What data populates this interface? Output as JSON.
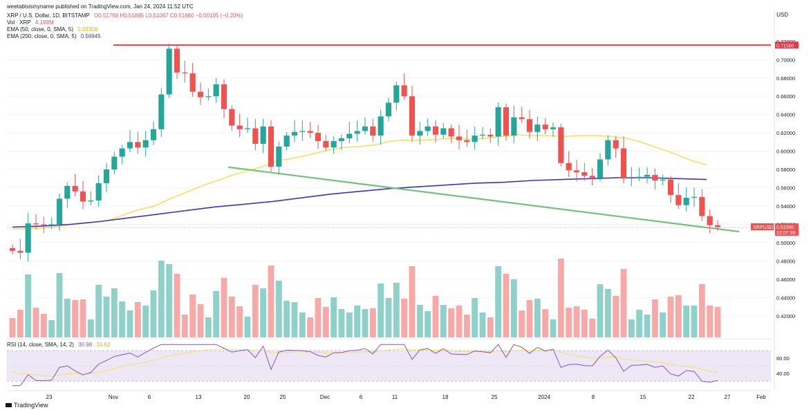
{
  "header": {
    "publisher": "weetabisismyname published on TradingView.com, Jan 24, 2024 11:52 UTC",
    "symbol": "XRP / U.S. Dollar, 1D, BITSTAMP",
    "ohlc": "O0.51768 H0.51895 L0.51067 C0.51660 −0.00105 (−0.20%)",
    "vol_label": "Vol · XRP",
    "vol_value": "4.199M",
    "ema50_label": "EMA (50, close, 0, SMA, 5)",
    "ema50_value": "0.59308",
    "ema200_label": "EMA (200, close, 0, SMA, 5)",
    "ema200_value": "0.56945",
    "rsi_label": "RSI (14, close, SMA, 14, 2)",
    "rsi_value": "30.98",
    "rsi_value2": "33.62"
  },
  "axis": {
    "currency": "USD",
    "price_ticks": [
      "0.72000",
      "0.70000",
      "0.68000",
      "0.66000",
      "0.64000",
      "0.62000",
      "0.60000",
      "0.58000",
      "0.56000",
      "0.54000",
      "0.52000",
      "0.50000",
      "0.48000",
      "0.46000",
      "0.44000",
      "0.42000"
    ],
    "rsi_ticks": [
      "60.00",
      "40.00"
    ],
    "x_ticks": [
      "23",
      "Nov",
      "6",
      "13",
      "20",
      "25",
      "Dec",
      "6",
      "11",
      "18",
      "25",
      "2024",
      "8",
      "15",
      "22",
      "27",
      "Feb"
    ],
    "resistance_tag": "0.71590",
    "symbol_tag": "XRPUSD",
    "last_price_tag": "0.51660",
    "countdown_tag": "12:07:39"
  },
  "brand": {
    "text": "TradingView"
  },
  "colors": {
    "up": "#26a69a",
    "down": "#ef5350",
    "vol_up": "#8fd0c8",
    "vol_down": "#f7a9a7",
    "ema50": "#f6e05e",
    "ema200": "#3a33c6",
    "resistance": "#e53946",
    "support": "#6ec27a",
    "rsi_line": "#7e57c2",
    "rsi_ma": "#f6e05e",
    "rsi_band": "#ede7f6"
  },
  "chart_data": {
    "type": "candlestick",
    "timeframe": "1D",
    "x_range": [
      "2023-10-17",
      "2024-01-23"
    ],
    "price_range": [
      0.41,
      0.735
    ],
    "candles_close": [
      0.491,
      0.489,
      0.521,
      0.52,
      0.519,
      0.52,
      0.548,
      0.562,
      0.556,
      0.545,
      0.546,
      0.565,
      0.58,
      0.594,
      0.603,
      0.61,
      0.604,
      0.612,
      0.624,
      0.662,
      0.712,
      0.686,
      0.685,
      0.665,
      0.659,
      0.66,
      0.673,
      0.646,
      0.628,
      0.624,
      0.625,
      0.608,
      0.627,
      0.583,
      0.605,
      0.617,
      0.621,
      0.622,
      0.62,
      0.611,
      0.604,
      0.611,
      0.614,
      0.619,
      0.622,
      0.627,
      0.617,
      0.638,
      0.653,
      0.672,
      0.66,
      0.617,
      0.622,
      0.627,
      0.618,
      0.625,
      0.616,
      0.612,
      0.61,
      0.617,
      0.618,
      0.616,
      0.648,
      0.617,
      0.637,
      0.635,
      0.621,
      0.629,
      0.624,
      0.626,
      0.587,
      0.579,
      0.577,
      0.573,
      0.571,
      0.591,
      0.612,
      0.603,
      0.57,
      0.571,
      0.572,
      0.574,
      0.568,
      0.569,
      0.552,
      0.541,
      0.549,
      0.55,
      0.529,
      0.519,
      0.517
    ],
    "ema50_values": [
      0.515,
      0.515,
      0.516,
      0.518,
      0.52,
      0.522,
      0.524,
      0.53,
      0.536,
      0.54,
      0.548,
      0.555,
      0.562,
      0.568,
      0.574,
      0.579,
      0.584,
      0.59,
      0.593,
      0.597,
      0.601,
      0.604,
      0.605,
      0.607,
      0.611,
      0.612,
      0.612,
      0.613,
      0.614,
      0.613,
      0.614,
      0.616,
      0.618,
      0.617,
      0.617,
      0.616,
      0.617,
      0.617,
      0.616,
      0.614,
      0.609,
      0.603,
      0.597,
      0.59,
      0.585
    ],
    "ema200_values": [
      0.517,
      0.518,
      0.52,
      0.523,
      0.527,
      0.531,
      0.535,
      0.539,
      0.542,
      0.545,
      0.549,
      0.553,
      0.556,
      0.559,
      0.561,
      0.563,
      0.565,
      0.566,
      0.568,
      0.569,
      0.57,
      0.571,
      0.571,
      0.57,
      0.569
    ],
    "resistance_level": 0.7159,
    "support_trendline": [
      [
        0.5825,
        "2023-11-16"
      ],
      [
        0.512,
        "2024-01-26"
      ]
    ],
    "last_price": 0.5166,
    "rsi_last": 30.98,
    "rsi_range": [
      22,
      80
    ],
    "rsi_levels": [
      70,
      30
    ],
    "grid": true
  }
}
